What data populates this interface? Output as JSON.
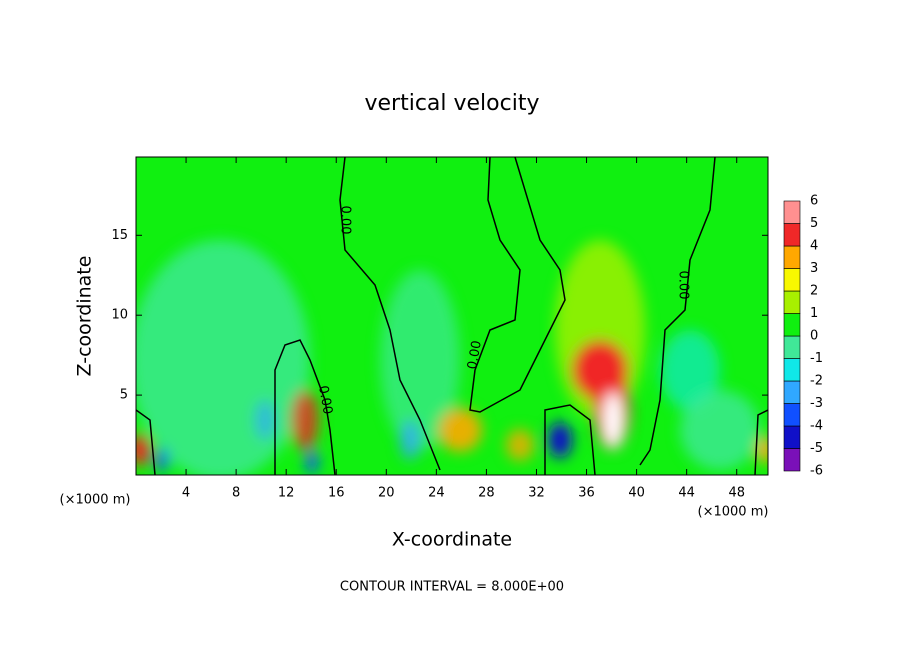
{
  "chart_data": {
    "type": "contour",
    "title": "vertical velocity",
    "x_label": "X-coordinate",
    "y_label": "Z-coordinate",
    "x_unit_label": "(×1000 m)",
    "xlim": [
      0,
      50.5
    ],
    "xticks": [
      4,
      8,
      12,
      16,
      20,
      24,
      28,
      32,
      36,
      40,
      44,
      48
    ],
    "ylim": [
      0,
      19.9
    ],
    "yticks": [
      5,
      10,
      15
    ],
    "contour_label": "0.00",
    "footer": "CONTOUR INTERVAL = 8.000E+00",
    "colorbar": {
      "levels": [
        -6,
        -5,
        -4,
        -3,
        -2,
        -1,
        0,
        1,
        2,
        3,
        4,
        5,
        6
      ],
      "colors": [
        "#7a10b8",
        "#1010c8",
        "#1050ff",
        "#30a8ff",
        "#10e8e8",
        "#40e898",
        "#10f010",
        "#a8f000",
        "#f8f800",
        "#ffa800",
        "#f02828",
        "#ff9090"
      ]
    }
  }
}
